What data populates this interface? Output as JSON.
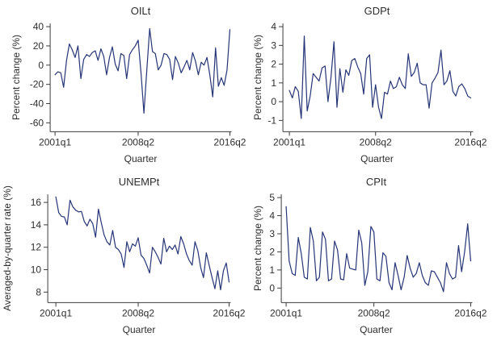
{
  "figure": {
    "background": "#ffffff",
    "line_color": "#263577",
    "axis_color": "#3c3c3c",
    "text_color": "#2e2e2e"
  },
  "chart_data": [
    {
      "id": "oilt",
      "type": "line",
      "title": "OILt",
      "xlabel": "Quarter",
      "ylabel": "Percent change (%)",
      "x_start": "2001q1",
      "x_end": "2016q2",
      "frequency": "quarterly",
      "x_ticks": [
        "2001q1",
        "2008q2",
        "2016q2"
      ],
      "x_tick_indices": [
        0,
        29,
        61
      ],
      "y_ticks": [
        40,
        20,
        0,
        -20,
        -40,
        -60
      ],
      "ylim": [
        -60,
        40
      ],
      "legend": "off",
      "grid": "off",
      "values": [
        -10,
        -7,
        -8,
        -23,
        5,
        22,
        16,
        8,
        20,
        -14,
        6,
        11,
        9,
        13,
        15,
        5,
        17,
        9,
        -10,
        8,
        19,
        1,
        -6,
        12,
        10,
        -14,
        11,
        16,
        20,
        26,
        -8,
        -50,
        -6,
        38,
        14,
        12,
        -5,
        0,
        12,
        11,
        6,
        -15,
        9,
        2,
        -8,
        -2,
        5,
        -5,
        13,
        4,
        -10,
        3,
        0,
        8,
        -10,
        -33,
        18,
        -22,
        -13,
        -21,
        -5,
        37
      ]
    },
    {
      "id": "gdpt",
      "type": "line",
      "title": "GDPt",
      "xlabel": "Quarter",
      "ylabel": "Percent change (%)",
      "x_start": "2001q1",
      "x_end": "2016q2",
      "frequency": "quarterly",
      "x_ticks": [
        "2001q1",
        "2008q2",
        "2016q2"
      ],
      "x_tick_indices": [
        0,
        29,
        61
      ],
      "y_ticks": [
        4,
        3,
        2,
        1,
        0,
        -1
      ],
      "ylim": [
        -1,
        4
      ],
      "legend": "off",
      "grid": "off",
      "values": [
        0.6,
        0.2,
        0.8,
        0.55,
        -0.9,
        3.5,
        -0.5,
        0.3,
        1.5,
        1.3,
        1.1,
        1.8,
        1.9,
        0,
        1.3,
        3.2,
        -0.3,
        1.75,
        0.5,
        1.7,
        1.4,
        2.2,
        2.3,
        1.85,
        1.5,
        0.4,
        2.3,
        2.5,
        -0.3,
        0.9,
        -0.3,
        -0.9,
        0.5,
        0.4,
        1.1,
        0.7,
        0.8,
        1.3,
        0.9,
        0.7,
        2.55,
        1.35,
        1.55,
        2.05,
        1.0,
        0.9,
        0.9,
        -0.35,
        1.0,
        1.25,
        1.55,
        2.75,
        0.9,
        1.1,
        1.65,
        0.55,
        0.3,
        0.8,
        0.95,
        0.7,
        0.3,
        0.2
      ]
    },
    {
      "id": "unempt",
      "type": "line",
      "title": "UNEMPt",
      "xlabel": "Quarter",
      "ylabel": "Averaged-by-quarter rate (%)",
      "x_start": "2001q1",
      "x_end": "2016q2",
      "frequency": "quarterly",
      "x_ticks": [
        "2001q1",
        "2008q2",
        "2016q2"
      ],
      "x_tick_indices": [
        0,
        29,
        61
      ],
      "y_ticks": [
        16,
        14,
        12,
        10,
        8
      ],
      "ylim": [
        8,
        16
      ],
      "legend": "off",
      "grid": "off",
      "values": [
        16.5,
        15.1,
        14.75,
        14.7,
        14.0,
        16.2,
        15.6,
        15.3,
        15.15,
        15.2,
        14.3,
        13.9,
        14.5,
        14.1,
        12.9,
        15.4,
        14.2,
        13.1,
        12.5,
        12.2,
        13.5,
        12.0,
        11.8,
        11.4,
        10.2,
        12.5,
        11.6,
        12.3,
        12.1,
        12.85,
        11.3,
        11.0,
        10.4,
        9.7,
        12.0,
        11.6,
        11.1,
        10.5,
        12.8,
        11.6,
        12.1,
        11.8,
        12.2,
        11.4,
        12.95,
        12.3,
        11.4,
        10.8,
        10.4,
        12.5,
        11.7,
        10.2,
        9.3,
        11.5,
        10.4,
        9.3,
        8.3,
        9.9,
        8.2,
        9.9,
        10.6,
        8.9
      ]
    },
    {
      "id": "cpit",
      "type": "line",
      "title": "CPIt",
      "xlabel": "Quarter",
      "ylabel": "Percent change (%)",
      "x_start": "2001q1",
      "x_end": "2016q2",
      "frequency": "quarterly",
      "x_ticks": [
        "2001q1",
        "2008q2",
        "2016q2"
      ],
      "x_tick_indices": [
        0,
        29,
        61
      ],
      "y_ticks": [
        5,
        4,
        3,
        2,
        1,
        0
      ],
      "ylim": [
        0,
        5
      ],
      "legend": "off",
      "grid": "off",
      "values": [
        4.5,
        1.5,
        0.8,
        0.7,
        2.8,
        1.9,
        0.6,
        0.5,
        3.35,
        2.6,
        0.4,
        0.6,
        3.1,
        2.7,
        0.4,
        0.5,
        2.6,
        2.1,
        0.5,
        0.45,
        1.9,
        1.1,
        1.05,
        1.0,
        3.2,
        2.5,
        0.15,
        0.9,
        3.4,
        3.1,
        0.5,
        0.4,
        1.95,
        1.75,
        0.3,
        -0.1,
        1.4,
        0.7,
        -0.1,
        0.6,
        1.8,
        1.1,
        0.6,
        0.8,
        1.4,
        0.7,
        0.3,
        0.15,
        0.95,
        0.9,
        0.6,
        0.3,
        -0.2,
        1.4,
        0.8,
        0.5,
        0.6,
        2.35,
        0.9,
        2.0,
        3.55,
        1.5
      ]
    }
  ]
}
